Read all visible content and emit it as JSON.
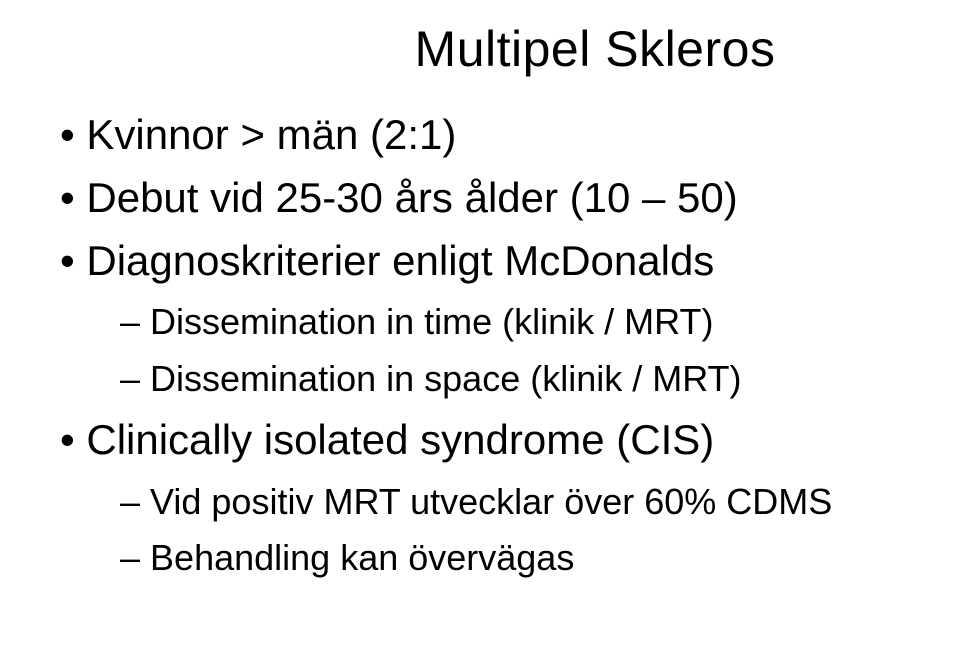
{
  "title": "Multipel Skleros",
  "bullets": [
    {
      "text": "Kvinnor > män (2:1)"
    },
    {
      "text": "Debut vid 25-30 års ålder (10 – 50)"
    },
    {
      "text": "Diagnoskriterier enligt McDonalds",
      "children": [
        {
          "text": "Dissemination in time (klinik / MRT)"
        },
        {
          "text": "Dissemination in space (klinik / MRT)"
        }
      ]
    },
    {
      "text": "Clinically isolated syndrome (CIS)",
      "children": [
        {
          "text": "Vid positiv MRT utvecklar över 60% CDMS"
        },
        {
          "text": "Behandling kan övervägas"
        }
      ]
    }
  ]
}
